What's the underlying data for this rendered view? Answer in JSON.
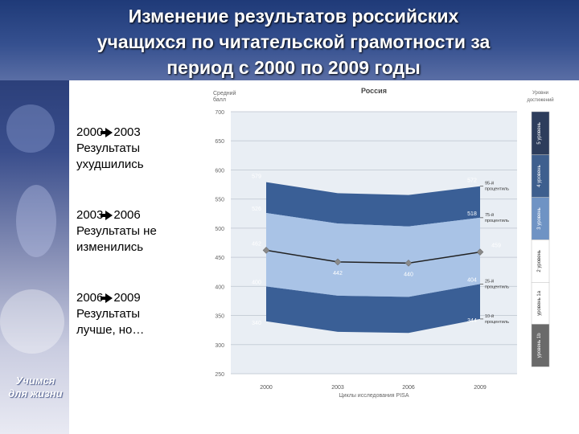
{
  "slide": {
    "title_lines": [
      "Изменение результатов российских",
      "учащихся по читательской грамотности за",
      "период с 2000 по 2009 годы"
    ],
    "logo_lines": [
      "Учимся",
      "для жизни"
    ]
  },
  "notes": [
    {
      "from": "2000",
      "to": "2003",
      "text_lines": [
        "Результаты",
        "ухудшились"
      ]
    },
    {
      "from": "2003",
      "to": "2006",
      "text_lines": [
        "Результаты не",
        "изменились"
      ]
    },
    {
      "from": "2006",
      "to": "2009",
      "text_lines": [
        "Результаты",
        "лучше, но…"
      ]
    }
  ],
  "chart_data": {
    "type": "area",
    "title": "Россия",
    "ylabel_lines": [
      "Средний",
      "балл"
    ],
    "xlabel": "Циклы исследования PISA",
    "x": [
      "2000",
      "2003",
      "2006",
      "2009"
    ],
    "ylim": [
      250,
      700
    ],
    "yticks": [
      250,
      300,
      350,
      400,
      450,
      500,
      550,
      600,
      650,
      700
    ],
    "series": [
      {
        "name": "95-й процентиль",
        "values": [
          579,
          560,
          557,
          572
        ],
        "labels": [
          "579",
          "",
          "",
          "572"
        ]
      },
      {
        "name": "75-й процентиль",
        "values": [
          526,
          508,
          503,
          518
        ],
        "labels": [
          "526",
          "",
          "",
          "518"
        ]
      },
      {
        "values": [
          462,
          442,
          440,
          459
        ],
        "labels": [
          "462",
          "442",
          "440",
          "459"
        ]
      },
      {
        "name": "25-й процентиль",
        "values": [
          400,
          384,
          382,
          404
        ],
        "labels": [
          "400",
          "",
          "",
          "404"
        ]
      },
      {
        "name": "10-й процентиль",
        "values": [
          340,
          322,
          320,
          344
        ],
        "labels": [
          "340",
          "",
          "",
          "344"
        ]
      }
    ],
    "percentile_label_lines": [
      [
        "95-й",
        "процентиль"
      ],
      [
        "75-й",
        "процентиль"
      ],
      [
        "25-й",
        "процентиль"
      ],
      [
        "10-й",
        "процентиль"
      ]
    ],
    "levels_header_lines": [
      "Уровни",
      "достижений"
    ],
    "levels": [
      {
        "label": "5 уровень",
        "from": 626,
        "to": 700,
        "color": "#2d3d5c"
      },
      {
        "label": "4 уровень",
        "from": 553,
        "to": 626,
        "color": "#3e5f8e"
      },
      {
        "label": "3 уровень",
        "from": 480,
        "to": 553,
        "color": "#6f93c4"
      },
      {
        "label": "2 уровень",
        "from": 407,
        "to": 480,
        "color": "#ffffff"
      },
      {
        "label": "уровень 1а",
        "from": 335,
        "to": 407,
        "color": "#ffffff"
      },
      {
        "label": "уровень 1b",
        "from": 262,
        "to": 335,
        "color": "#6a6a6a"
      }
    ],
    "colors": {
      "outer_band": "#3a5f96",
      "middle_band": "#6e92c6",
      "inner_band": "#a9c3e6",
      "mean_line": "#222222",
      "marker": "#8a8a8a",
      "plot_bg": "#e9eef4",
      "grid": "#c8cfd8"
    }
  }
}
